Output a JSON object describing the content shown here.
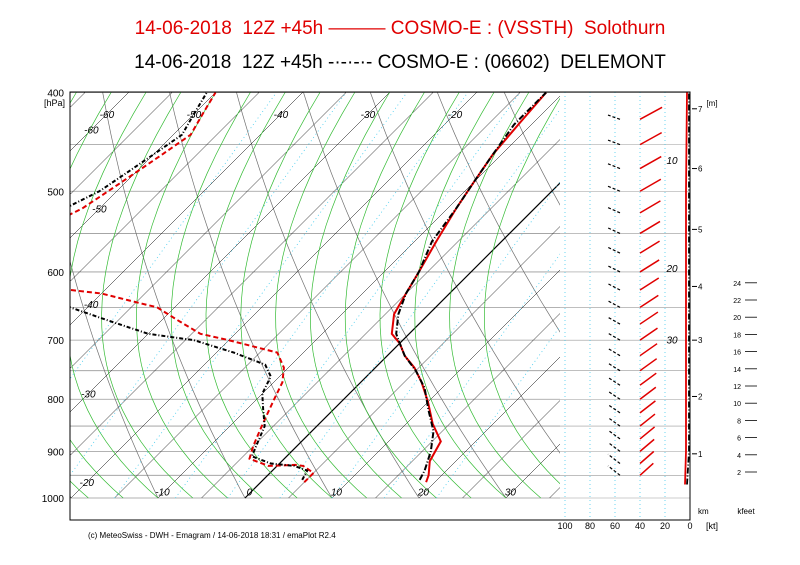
{
  "titles": {
    "line1": "14-06-2018  12Z +45h ——— COSMO-E : (VSSTH)  Solothurn",
    "line2": "14-06-2018  12Z +45h -·-·-·- COSMO-E : (06602)  DELEMONT"
  },
  "footer": "(c) MeteoSwiss - DWH - Emagram / 14-06-2018  18:31 / emaPlot R2.4",
  "colors": {
    "series1": "#e00000",
    "series2": "#000000",
    "dry_adiabat": "#707070",
    "moist_adiabat": "#33bb33",
    "mixing_ratio": "#44ccee",
    "grid": "#999999"
  },
  "chart_data": {
    "type": "emagram",
    "y_unit": "[hPa]",
    "y_ticks": [
      400,
      500,
      600,
      700,
      800,
      900,
      1000
    ],
    "ylim": [
      400,
      1000
    ],
    "xlim": [
      -75,
      45
    ],
    "x_ticks": [
      -10,
      0,
      10,
      20,
      30
    ],
    "inside_temp_labels": [
      {
        "t": -60,
        "p": 420
      },
      {
        "t": -60,
        "p": 435
      },
      {
        "t": -50,
        "p": 420
      },
      {
        "t": -40,
        "p": 420
      },
      {
        "t": -30,
        "p": 420
      },
      {
        "t": -20,
        "p": 420
      },
      {
        "t": -50,
        "p": 520
      },
      {
        "t": -40,
        "p": 645
      },
      {
        "t": -30,
        "p": 790
      },
      {
        "t": -20,
        "p": 965
      }
    ],
    "height_axis": {
      "unit": "[m]",
      "labels": [
        1,
        2,
        3,
        4,
        5,
        6,
        7
      ]
    },
    "km_axis": {
      "unit": "km",
      "labels": [
        2,
        4,
        6,
        8,
        10,
        12,
        14,
        16,
        18,
        20,
        22,
        24
      ]
    },
    "kfeet_label": "kfeet",
    "wind_axis": {
      "unit": "[kt]",
      "ticks": [
        100,
        80,
        60,
        40,
        20,
        0
      ]
    },
    "wind_inside_labels": [
      10,
      20,
      30
    ],
    "series": [
      {
        "name": "COSMO-E : (VSSTH)  Solothurn",
        "style": "solid",
        "temperature": [
          [
            19,
            965
          ],
          [
            18.5,
            950
          ],
          [
            17,
            920
          ],
          [
            16,
            880
          ],
          [
            13,
            845
          ],
          [
            10,
            805
          ],
          [
            7,
            770
          ],
          [
            4.5,
            745
          ],
          [
            2,
            725
          ],
          [
            0,
            705
          ],
          [
            -2,
            690
          ],
          [
            -4,
            660
          ],
          [
            -5,
            630
          ],
          [
            -6,
            600
          ],
          [
            -7.5,
            560
          ],
          [
            -9,
            520
          ],
          [
            -10,
            490
          ],
          [
            -11,
            460
          ],
          [
            -11.5,
            430
          ],
          [
            -12,
            400
          ]
        ],
        "dewpoint": [
          [
            5,
            965
          ],
          [
            5,
            945
          ],
          [
            3,
            930
          ],
          [
            2,
            928
          ],
          [
            -1,
            930
          ],
          [
            -4,
            915
          ],
          [
            -5,
            890
          ],
          [
            -6,
            860
          ],
          [
            -7,
            830
          ],
          [
            -8,
            800
          ],
          [
            -9,
            770
          ],
          [
            -10.5,
            745
          ],
          [
            -13,
            720
          ],
          [
            -20,
            700
          ],
          [
            -24,
            690
          ],
          [
            -28,
            670
          ],
          [
            -32,
            650
          ],
          [
            -36,
            640
          ],
          [
            -40,
            630
          ],
          [
            -48,
            620
          ],
          [
            -58,
            610
          ],
          [
            -64,
            605
          ],
          [
            -64,
            600
          ],
          [
            -58,
            580
          ],
          [
            -56,
            560
          ],
          [
            -54,
            540
          ],
          [
            -52,
            520
          ],
          [
            -51,
            500
          ],
          [
            -50,
            480
          ],
          [
            -49,
            460
          ],
          [
            -48,
            440
          ],
          [
            -49,
            420
          ],
          [
            -50,
            400
          ]
        ],
        "wind_profile_x": [
          [
            5,
            970
          ],
          [
            4,
            900
          ],
          [
            4,
            700
          ],
          [
            4,
            500
          ],
          [
            3,
            400
          ]
        ]
      },
      {
        "name": "COSMO-E : (06602)  DELEMONT",
        "style": "dash-dot",
        "temperature": [
          [
            18,
            960
          ],
          [
            17.5,
            940
          ],
          [
            16,
            900
          ],
          [
            14,
            860
          ],
          [
            11,
            820
          ],
          [
            8,
            780
          ],
          [
            5,
            750
          ],
          [
            2,
            725
          ],
          [
            0,
            705
          ],
          [
            -1.5,
            690
          ],
          [
            -3.5,
            660
          ],
          [
            -5,
            630
          ],
          [
            -6,
            600
          ],
          [
            -8,
            560
          ],
          [
            -9,
            520
          ],
          [
            -10,
            490
          ],
          [
            -11,
            460
          ],
          [
            -12,
            430
          ],
          [
            -12,
            400
          ]
        ],
        "dewpoint": [
          [
            4.5,
            960
          ],
          [
            4,
            940
          ],
          [
            2,
            930
          ],
          [
            -1,
            925
          ],
          [
            -4,
            910
          ],
          [
            -5,
            880
          ],
          [
            -6,
            850
          ],
          [
            -8,
            820
          ],
          [
            -10,
            790
          ],
          [
            -11,
            760
          ],
          [
            -13,
            740
          ],
          [
            -18,
            720
          ],
          [
            -24,
            700
          ],
          [
            -30,
            690
          ],
          [
            -36,
            670
          ],
          [
            -42,
            650
          ],
          [
            -50,
            630
          ],
          [
            -56,
            615
          ],
          [
            -62,
            610
          ],
          [
            -65,
            600
          ],
          [
            -60,
            580
          ],
          [
            -58,
            560
          ],
          [
            -56,
            540
          ],
          [
            -54,
            520
          ],
          [
            -52,
            500
          ],
          [
            -51,
            480
          ],
          [
            -50,
            460
          ],
          [
            -49,
            440
          ],
          [
            -50,
            420
          ],
          [
            -51,
            400
          ]
        ],
        "wind_profile_x": [
          [
            3,
            970
          ],
          [
            1,
            900
          ],
          [
            1,
            700
          ],
          [
            1,
            500
          ],
          [
            1,
            400
          ]
        ]
      }
    ]
  }
}
